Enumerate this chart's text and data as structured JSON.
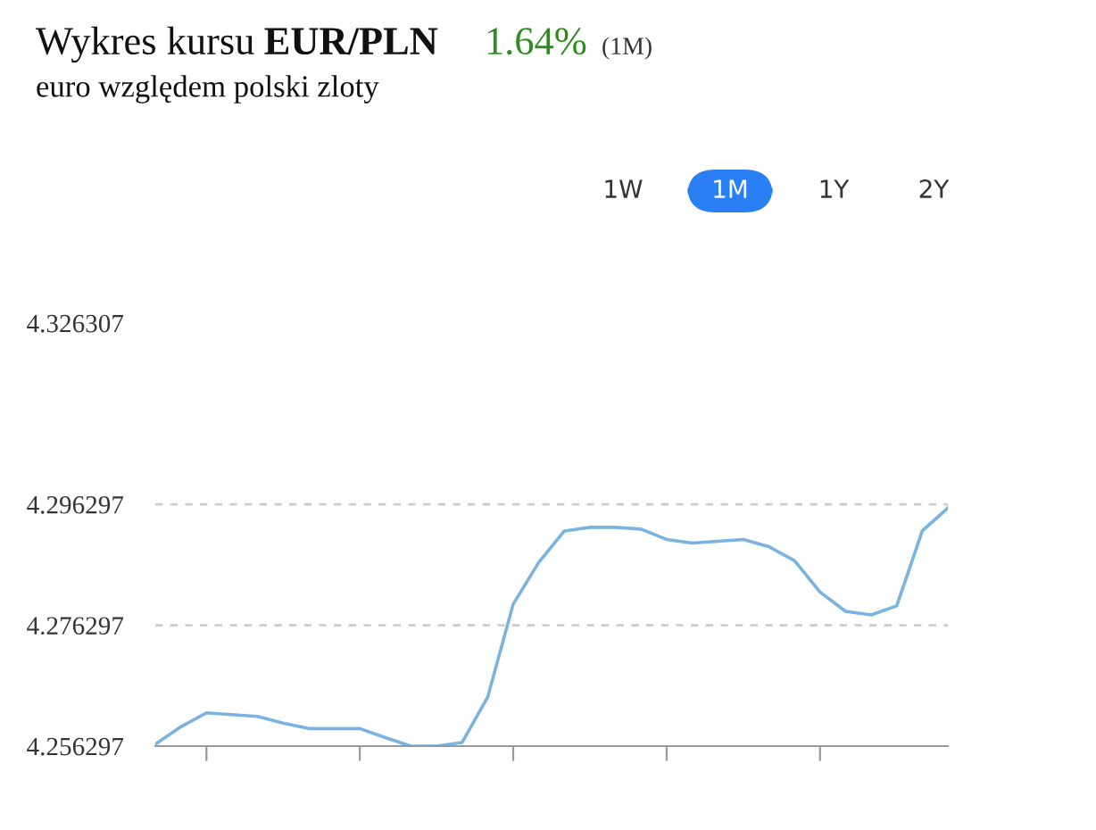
{
  "chart_data": {
    "type": "line",
    "title": "Wykres kursu EUR/PLN",
    "subtitle": "euro względem polski zloty",
    "annotations": [
      "1.64%",
      "(1M)",
      "1W",
      "1M",
      "1Y",
      "2Y"
    ],
    "categories": [
      null,
      null,
      null,
      null,
      null,
      null,
      null,
      null,
      null,
      null,
      null,
      null,
      null,
      null,
      null,
      null,
      null,
      null,
      null,
      null,
      null,
      null,
      null,
      null,
      null,
      null,
      null,
      null,
      null,
      null,
      null,
      null
    ],
    "series": [
      {
        "color": "#7ab3e0",
        "values": [
          4.2566,
          4.2595,
          4.2618,
          4.2615,
          4.2612,
          4.2601,
          4.2592,
          4.2592,
          4.2592,
          4.2577,
          4.2563,
          4.2563,
          4.2569,
          4.2644,
          4.2798,
          4.2867,
          4.2919,
          4.2925,
          4.2925,
          4.2922,
          4.2905,
          4.2899,
          4.2902,
          4.2905,
          4.2893,
          4.287,
          4.2818,
          4.2786,
          4.278,
          4.2795,
          4.2919,
          4.2957
        ]
      }
    ],
    "ylim": [
      4.256297,
      4.326307
    ],
    "yticks": [
      4.256297,
      4.276297,
      4.296297,
      4.326307
    ],
    "grid": "y",
    "legend": false,
    "marker": "none",
    "line_style": "solid",
    "tick_labels": "y"
  }
}
